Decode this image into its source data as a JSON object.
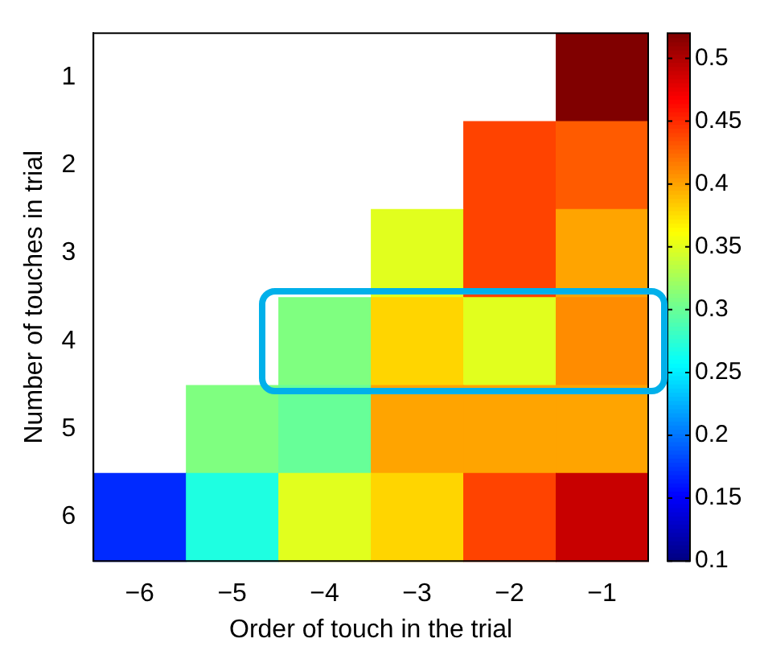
{
  "chart_data": {
    "type": "heatmap",
    "xlabel": "Order of touch in the trial",
    "ylabel": "Number of touches in trial",
    "categories": [
      "−6",
      "−5",
      "−4",
      "−3",
      "−2",
      "−1"
    ],
    "y_categories": [
      "1",
      "2",
      "3",
      "4",
      "5",
      "6"
    ],
    "cells": [
      [
        null,
        null,
        null,
        null,
        null,
        0.52
      ],
      [
        null,
        null,
        null,
        null,
        0.44,
        0.43
      ],
      [
        null,
        null,
        null,
        0.35,
        0.44,
        0.4
      ],
      [
        null,
        null,
        0.31,
        0.38,
        0.35,
        0.41
      ],
      [
        null,
        0.31,
        0.3,
        0.4,
        0.4,
        0.4
      ],
      [
        0.17,
        0.27,
        0.35,
        0.38,
        0.44,
        0.49
      ]
    ],
    "clim": [
      0.1,
      0.52
    ],
    "cticks": [
      0.1,
      0.15,
      0.2,
      0.25,
      0.3,
      0.35,
      0.4,
      0.45,
      0.5
    ]
  }
}
